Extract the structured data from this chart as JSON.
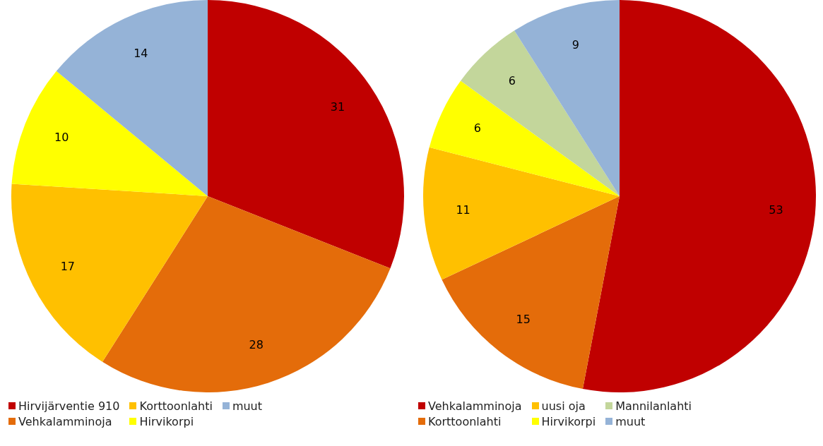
{
  "chart_data": [
    {
      "type": "pie",
      "categories": [
        "Hirvijärventie 910",
        "Vehkalamminoja",
        "Korttoonlahti",
        "Hirvikorpi",
        "muut"
      ],
      "values": [
        31,
        28,
        17,
        10,
        14
      ],
      "colors": [
        "#c00000",
        "#e46c0a",
        "#ffc000",
        "#ffff00",
        "#95b3d7"
      ],
      "data_labels": true,
      "legend": "bottom"
    },
    {
      "type": "pie",
      "categories": [
        "Vehkalamminoja",
        "Korttoonlahti",
        "uusi oja",
        "Hirvikorpi",
        "Mannilanlahti",
        "muut"
      ],
      "values": [
        53,
        15,
        11,
        6,
        6,
        9
      ],
      "colors": [
        "#c00000",
        "#e46c0a",
        "#ffc000",
        "#ffff00",
        "#c3d69b",
        "#95b3d7"
      ],
      "data_labels": true,
      "legend": "bottom"
    }
  ]
}
